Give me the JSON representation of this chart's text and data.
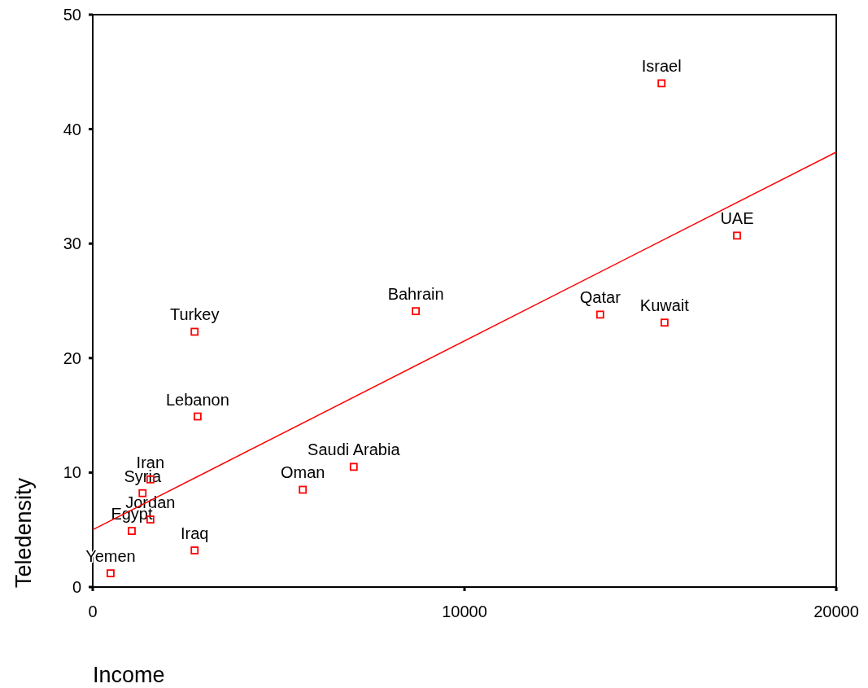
{
  "chart_data": {
    "type": "scatter",
    "xlabel": "Income",
    "ylabel": "Teledensity",
    "xlim": [
      0,
      20000
    ],
    "ylim": [
      0,
      50
    ],
    "xticks": [
      0,
      10000,
      20000
    ],
    "yticks": [
      0,
      10,
      20,
      30,
      40,
      50
    ],
    "grid": false,
    "series": [
      {
        "marker": "square",
        "color": "#ff0000",
        "x": [
          15300,
          17330,
          15380,
          13650,
          8690,
          7020,
          5650,
          2740,
          2820,
          2740,
          1550,
          1340,
          1550,
          1050,
          480
        ],
        "values": [
          44.0,
          30.7,
          23.1,
          23.8,
          24.1,
          10.5,
          8.5,
          22.3,
          14.9,
          3.2,
          9.4,
          8.2,
          5.9,
          4.9,
          1.2
        ]
      },
      {
        "type": "line",
        "color": "#ff0000",
        "line_style": "solid",
        "x": [
          0,
          20000
        ],
        "values": [
          5.0,
          38.0
        ]
      }
    ],
    "annotations": [
      {
        "text": "Israel",
        "x": 15300,
        "y": 44.0
      },
      {
        "text": "UAE",
        "x": 17330,
        "y": 30.7
      },
      {
        "text": "Kuwait",
        "x": 15380,
        "y": 23.1
      },
      {
        "text": "Qatar",
        "x": 13650,
        "y": 23.8
      },
      {
        "text": "Bahrain",
        "x": 8690,
        "y": 24.1
      },
      {
        "text": "Saudi Arabia",
        "x": 7020,
        "y": 10.5
      },
      {
        "text": "Oman",
        "x": 5650,
        "y": 8.5
      },
      {
        "text": "Turkey",
        "x": 2740,
        "y": 22.3
      },
      {
        "text": "Lebanon",
        "x": 2820,
        "y": 14.9
      },
      {
        "text": "Iraq",
        "x": 2740,
        "y": 3.2
      },
      {
        "text": "Iran",
        "x": 1550,
        "y": 9.4
      },
      {
        "text": "Syria",
        "x": 1340,
        "y": 8.2
      },
      {
        "text": "Jordan",
        "x": 1550,
        "y": 5.9
      },
      {
        "text": "Egypt",
        "x": 1050,
        "y": 4.9
      },
      {
        "text": "Yemen",
        "x": 480,
        "y": 1.2
      }
    ]
  }
}
